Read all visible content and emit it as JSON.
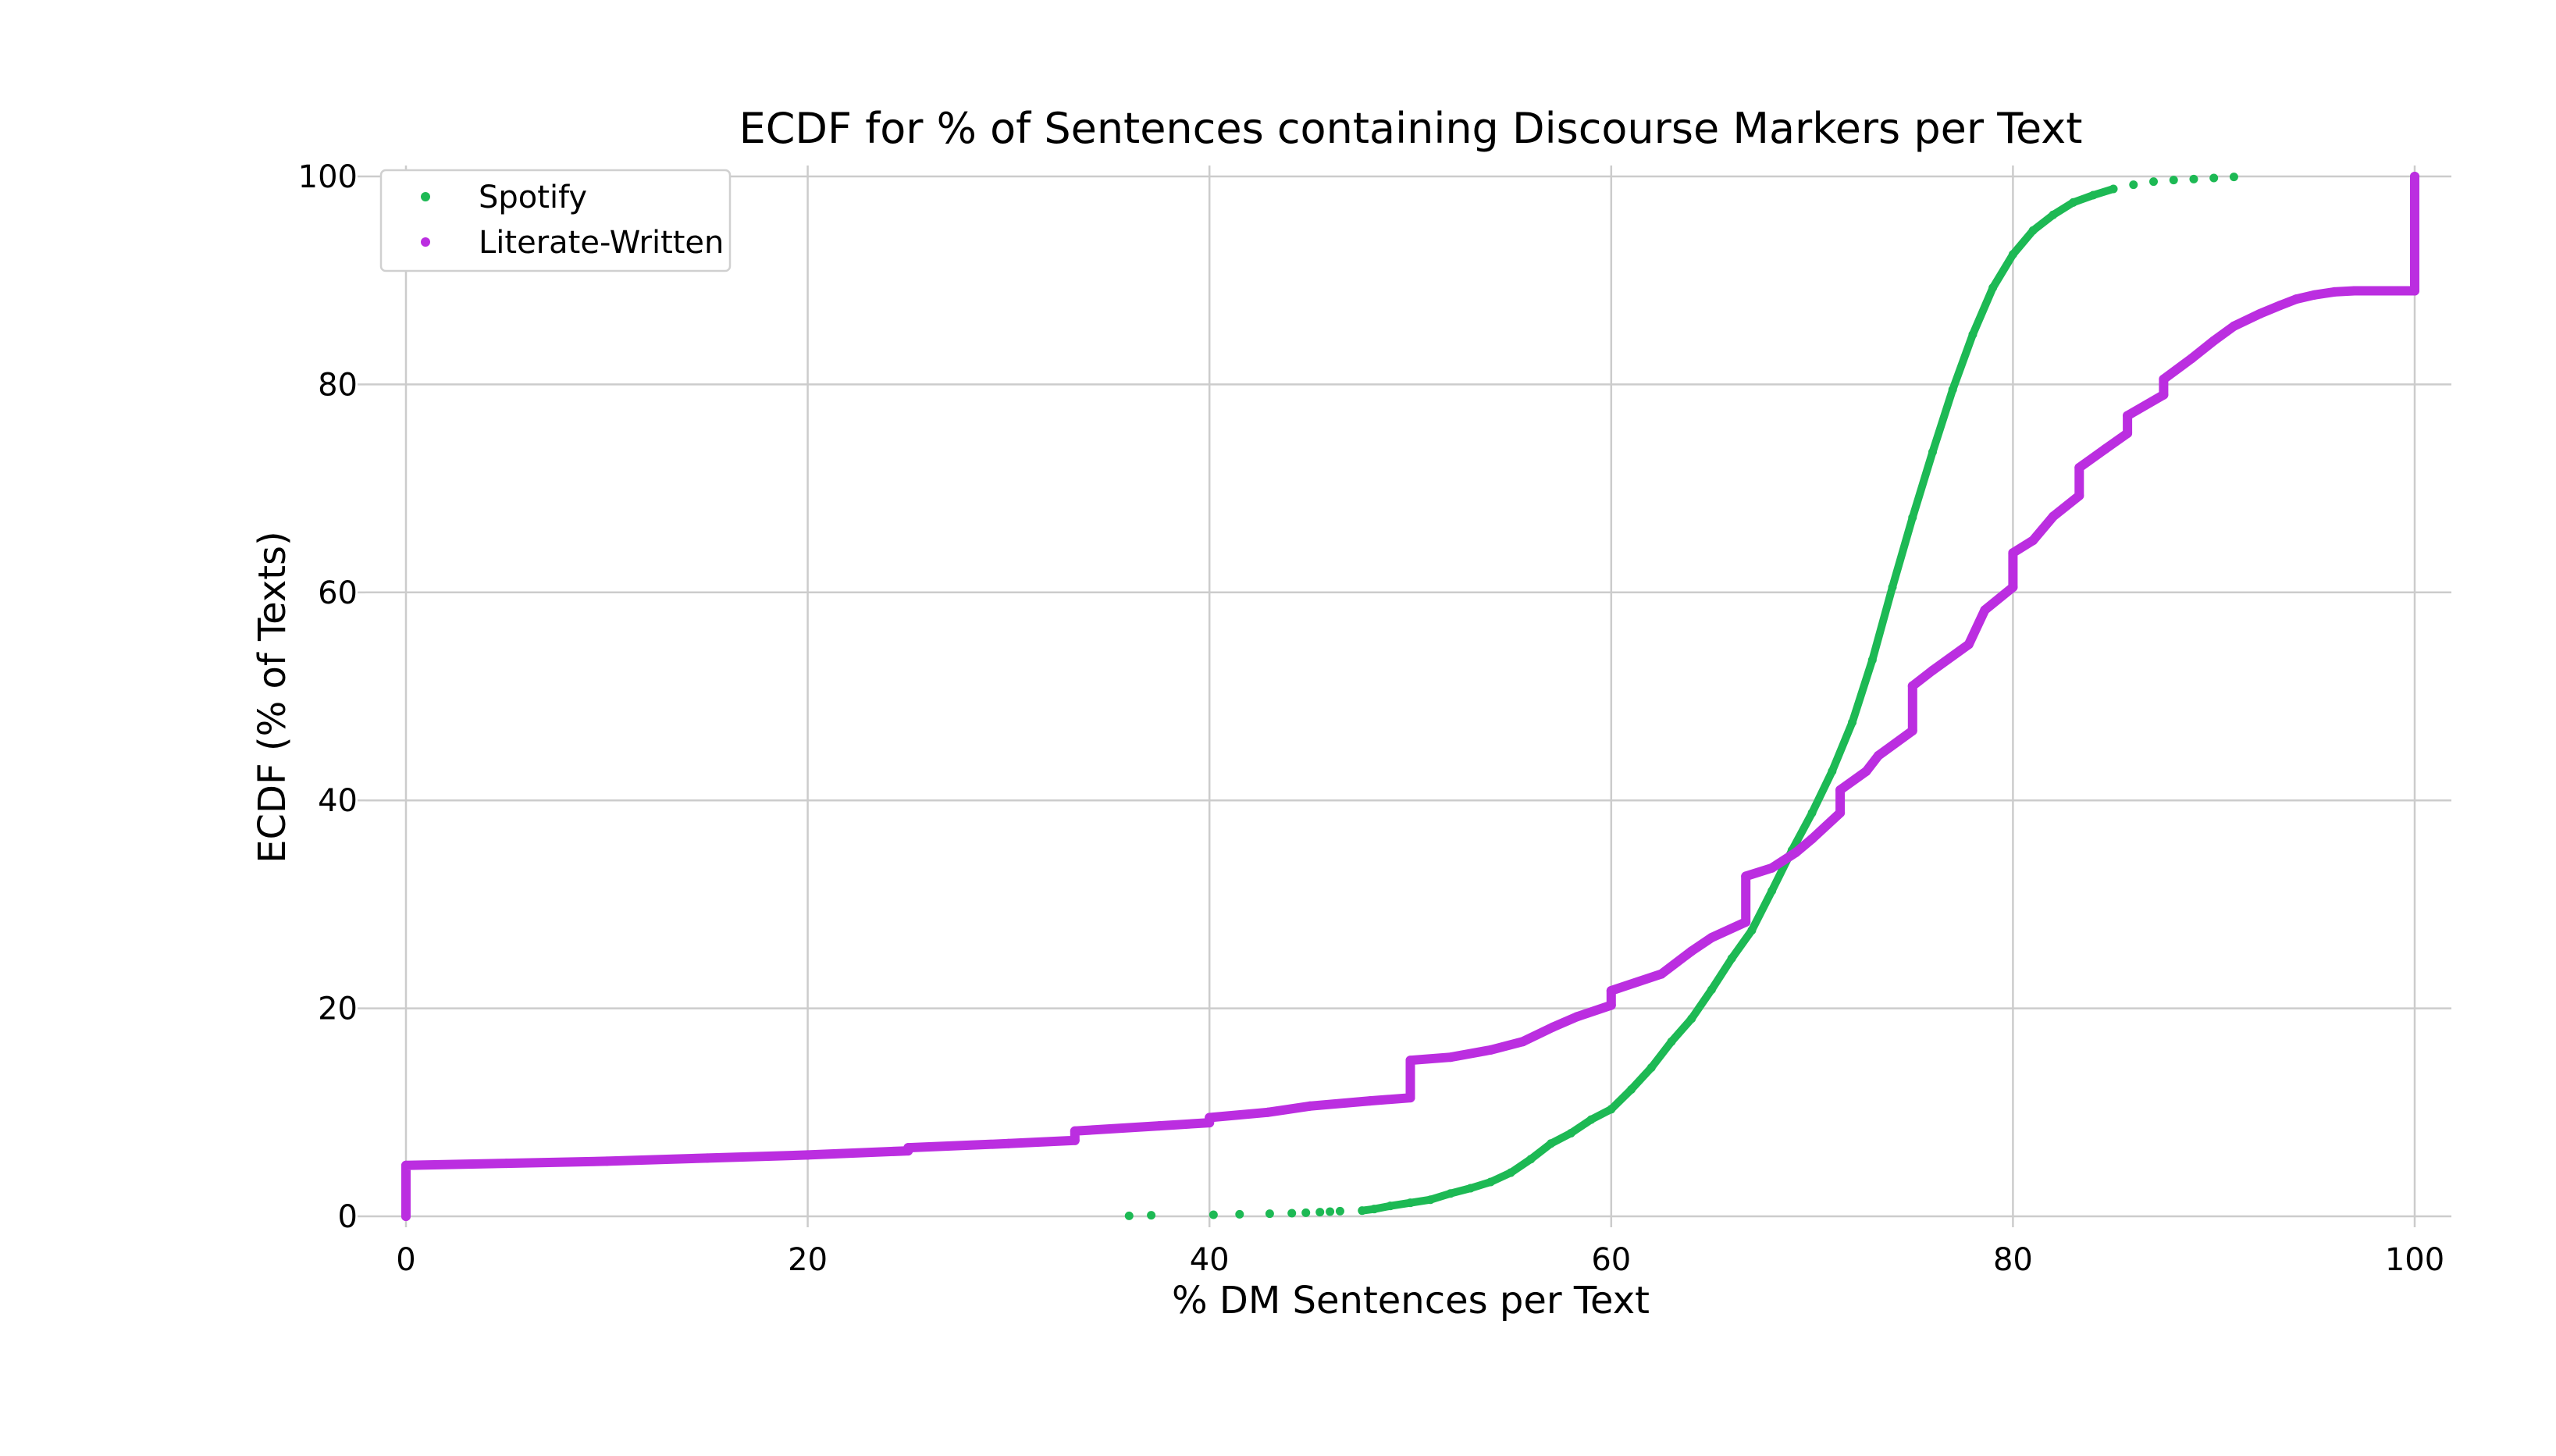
{
  "chart_data": {
    "type": "scatter",
    "title": "ECDF for % of Sentences containing Discourse Markers per Text",
    "xlabel": "% DM Sentences per Text",
    "ylabel": "ECDF (% of Texts)",
    "xlim": [
      -1,
      102
    ],
    "ylim": [
      -0.5,
      101.5
    ],
    "xticks": [
      0,
      20,
      40,
      60,
      80,
      100
    ],
    "yticks": [
      0,
      20,
      40,
      60,
      80,
      100
    ],
    "xtick_labels": [
      "0",
      "20",
      "40",
      "60",
      "80",
      "100"
    ],
    "ytick_labels": [
      "0",
      "20",
      "40",
      "60",
      "80",
      "100"
    ],
    "grid": true,
    "legend_position": "top-left",
    "series": [
      {
        "name": "Spotify",
        "color": "#1db954",
        "points": [
          [
            36.0,
            0.05
          ],
          [
            37.1,
            0.1
          ],
          [
            40.2,
            0.15
          ],
          [
            41.5,
            0.2
          ],
          [
            43.0,
            0.25
          ],
          [
            44.1,
            0.3
          ],
          [
            44.8,
            0.35
          ],
          [
            45.5,
            0.4
          ],
          [
            46.0,
            0.45
          ],
          [
            46.5,
            0.5
          ],
          [
            47.6,
            0.55
          ],
          [
            48.2,
            0.7
          ],
          [
            49.0,
            1.0
          ],
          [
            50.0,
            1.3
          ],
          [
            51.0,
            1.6
          ],
          [
            52.0,
            2.2
          ],
          [
            53.0,
            2.7
          ],
          [
            54.0,
            3.3
          ],
          [
            55.0,
            4.2
          ],
          [
            56.0,
            5.5
          ],
          [
            57.0,
            7.0
          ],
          [
            58.0,
            8.0
          ],
          [
            59.0,
            9.3
          ],
          [
            60.0,
            10.3
          ],
          [
            61.0,
            12.2
          ],
          [
            62.0,
            14.3
          ],
          [
            63.0,
            16.8
          ],
          [
            64.0,
            19.0
          ],
          [
            65.0,
            21.8
          ],
          [
            66.0,
            24.8
          ],
          [
            67.0,
            27.5
          ],
          [
            68.0,
            31.3
          ],
          [
            69.0,
            35.2
          ],
          [
            70.0,
            38.8
          ],
          [
            71.0,
            42.8
          ],
          [
            72.0,
            47.5
          ],
          [
            73.0,
            53.5
          ],
          [
            74.0,
            60.5
          ],
          [
            75.0,
            67.2
          ],
          [
            76.0,
            73.5
          ],
          [
            77.0,
            79.5
          ],
          [
            78.0,
            84.8
          ],
          [
            79.0,
            89.3
          ],
          [
            80.0,
            92.5
          ],
          [
            81.0,
            94.8
          ],
          [
            82.0,
            96.3
          ],
          [
            83.0,
            97.5
          ],
          [
            84.0,
            98.2
          ],
          [
            85.0,
            98.8
          ],
          [
            86.0,
            99.2
          ],
          [
            87.0,
            99.5
          ],
          [
            88.0,
            99.65
          ],
          [
            89.0,
            99.75
          ],
          [
            90.0,
            99.85
          ],
          [
            91.0,
            99.95
          ]
        ]
      },
      {
        "name": "Literate-Written",
        "color": "#bb2ee0",
        "points": [
          [
            0.0,
            0.0
          ],
          [
            0.0,
            4.9
          ],
          [
            5.0,
            5.1
          ],
          [
            10.0,
            5.3
          ],
          [
            15.0,
            5.6
          ],
          [
            20.0,
            5.9
          ],
          [
            25.0,
            6.3
          ],
          [
            25.0,
            6.6
          ],
          [
            30.0,
            7.0
          ],
          [
            33.3,
            7.3
          ],
          [
            33.3,
            8.2
          ],
          [
            37.5,
            8.7
          ],
          [
            40.0,
            9.0
          ],
          [
            40.0,
            9.5
          ],
          [
            42.9,
            10.0
          ],
          [
            45.0,
            10.6
          ],
          [
            48.0,
            11.1
          ],
          [
            50.0,
            11.4
          ],
          [
            50.0,
            15.0
          ],
          [
            52.0,
            15.3
          ],
          [
            54.0,
            16.0
          ],
          [
            55.6,
            16.8
          ],
          [
            57.1,
            18.2
          ],
          [
            58.3,
            19.2
          ],
          [
            60.0,
            20.3
          ],
          [
            60.0,
            21.7
          ],
          [
            62.5,
            23.3
          ],
          [
            64.0,
            25.5
          ],
          [
            65.0,
            26.8
          ],
          [
            66.7,
            28.3
          ],
          [
            66.7,
            32.7
          ],
          [
            68.0,
            33.5
          ],
          [
            69.2,
            35.0
          ],
          [
            70.0,
            36.3
          ],
          [
            71.4,
            38.8
          ],
          [
            71.4,
            41.0
          ],
          [
            72.7,
            42.8
          ],
          [
            73.3,
            44.3
          ],
          [
            75.0,
            46.7
          ],
          [
            75.0,
            51.0
          ],
          [
            76.0,
            52.5
          ],
          [
            77.8,
            55.0
          ],
          [
            78.6,
            58.3
          ],
          [
            80.0,
            60.5
          ],
          [
            80.0,
            63.8
          ],
          [
            81.0,
            65.0
          ],
          [
            82.0,
            67.3
          ],
          [
            83.3,
            69.3
          ],
          [
            83.3,
            72.0
          ],
          [
            84.6,
            73.8
          ],
          [
            85.7,
            75.3
          ],
          [
            85.7,
            77.0
          ],
          [
            87.5,
            79.0
          ],
          [
            87.5,
            80.5
          ],
          [
            88.9,
            82.5
          ],
          [
            90.0,
            84.2
          ],
          [
            91.0,
            85.6
          ],
          [
            92.3,
            86.8
          ],
          [
            93.3,
            87.6
          ],
          [
            94.1,
            88.2
          ],
          [
            95.0,
            88.6
          ],
          [
            96.0,
            88.9
          ],
          [
            97.0,
            89.0
          ],
          [
            99.0,
            89.0
          ],
          [
            100.0,
            89.0
          ],
          [
            100.0,
            100.0
          ]
        ]
      }
    ]
  }
}
